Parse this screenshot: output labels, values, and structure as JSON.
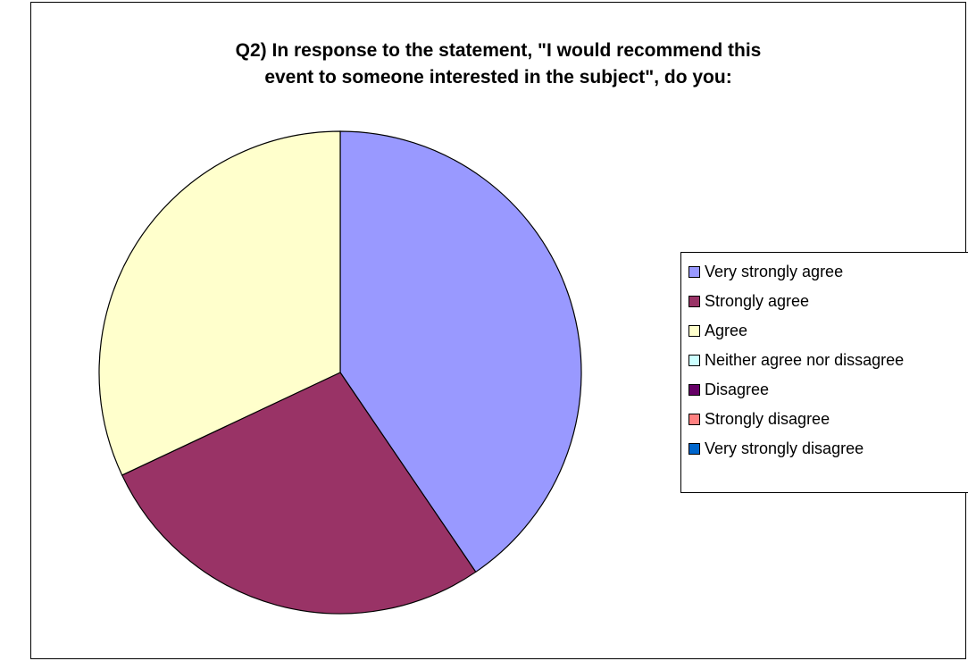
{
  "chart_data": {
    "type": "pie",
    "title_lines": [
      "Q2) In response to the statement, \"I would recommend this",
      "event to someone interested in the subject\", do you:"
    ],
    "categories": [
      "Very strongly agree",
      "Strongly agree",
      "Agree",
      "Neither agree nor dissagree",
      "Disagree",
      "Strongly disagree",
      "Very strongly disagree"
    ],
    "values": [
      40.5,
      27.5,
      32,
      0,
      0,
      0,
      0
    ],
    "colors": [
      "#9999FF",
      "#993366",
      "#FFFFCC",
      "#CCFFFF",
      "#660066",
      "#FF8080",
      "#0066CC"
    ],
    "start_angle_deg": 0,
    "direction": "clockwise",
    "legend_position": "right"
  }
}
